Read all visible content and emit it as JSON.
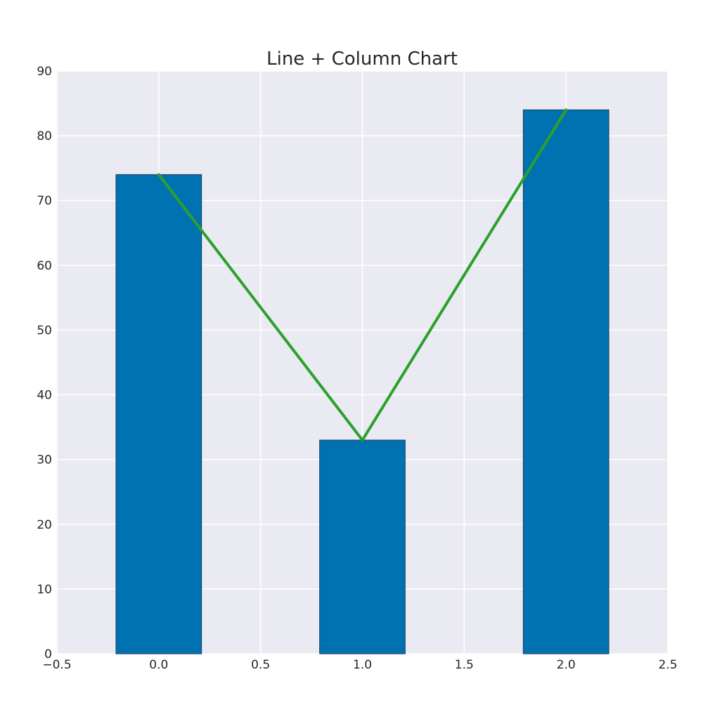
{
  "chart_data": {
    "type": "bar",
    "title": "Line + Column Chart",
    "xlabel": "",
    "ylabel": "",
    "x": [
      0,
      1,
      2
    ],
    "xlim": [
      -0.5,
      2.5
    ],
    "ylim": [
      0,
      90
    ],
    "x_ticks": [
      "−0.5",
      "0.0",
      "0.5",
      "1.0",
      "1.5",
      "2.0",
      "2.5"
    ],
    "x_tick_values": [
      -0.5,
      0,
      0.5,
      1,
      1.5,
      2,
      2.5
    ],
    "y_ticks": [
      "0",
      "10",
      "20",
      "30",
      "40",
      "50",
      "60",
      "70",
      "80",
      "90"
    ],
    "y_tick_values": [
      0,
      10,
      20,
      30,
      40,
      50,
      60,
      70,
      80,
      90
    ],
    "bar_width": 0.42,
    "grid": true,
    "legend": "none",
    "series": [
      {
        "kind": "bar",
        "values": [
          74,
          33,
          84
        ],
        "color": "#0072b2"
      },
      {
        "kind": "line",
        "values": [
          74,
          33,
          84
        ],
        "color": "#2ca02c"
      }
    ],
    "colors": {
      "background": "#eaeaf2",
      "grid": "#ffffff",
      "text": "#262626",
      "bar_edge": "#1a3a5a"
    }
  }
}
